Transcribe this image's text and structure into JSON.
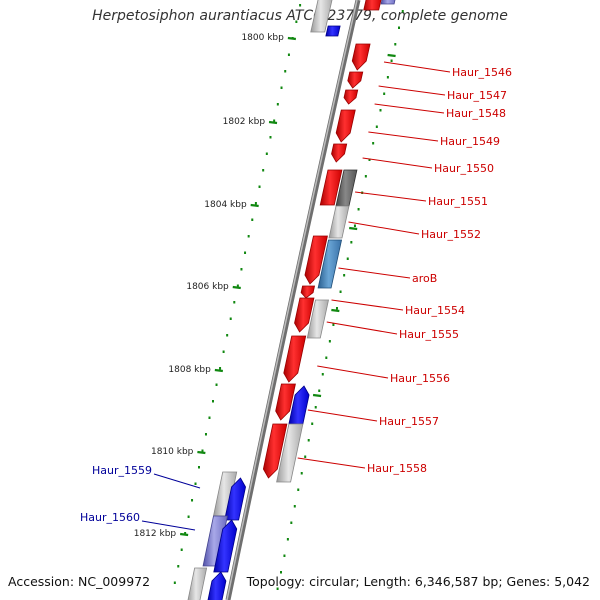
{
  "title": "Herpetosiphon aurantiacus ATCC 23779, complete genome",
  "accession": "Accession: NC_009972",
  "topology": "Topology: circular; Length: 6,346,587 bp; Genes: 5,042",
  "colors": {
    "forward": "#ff0000",
    "reverse": "#0000ee",
    "label_right": "#cc0000",
    "label_left": "#000099",
    "tick": "#118811",
    "backbone": "#888888"
  },
  "kbp_labels": [
    {
      "text": "1800 kbp",
      "kbp": 1800
    },
    {
      "text": "1802 kbp",
      "kbp": 1802
    },
    {
      "text": "1804 kbp",
      "kbp": 1804
    },
    {
      "text": "1806 kbp",
      "kbp": 1806
    },
    {
      "text": "1808 kbp",
      "kbp": 1808
    },
    {
      "text": "1810 kbp",
      "kbp": 1810
    },
    {
      "text": "1812 kbp",
      "kbp": 1812
    }
  ],
  "genes_right": [
    {
      "label": "Haur_1546"
    },
    {
      "label": "Haur_1547"
    },
    {
      "label": "Haur_1548"
    },
    {
      "label": "Haur_1549"
    },
    {
      "label": "Haur_1550"
    },
    {
      "label": "Haur_1551"
    },
    {
      "label": "Haur_1552"
    },
    {
      "label": "aroB"
    },
    {
      "label": "Haur_1554"
    },
    {
      "label": "Haur_1555"
    },
    {
      "label": "Haur_1556"
    },
    {
      "label": "Haur_1557"
    },
    {
      "label": "Haur_1558"
    }
  ],
  "genes_left": [
    {
      "label": "Haur_1559"
    },
    {
      "label": "Haur_1560"
    }
  ]
}
